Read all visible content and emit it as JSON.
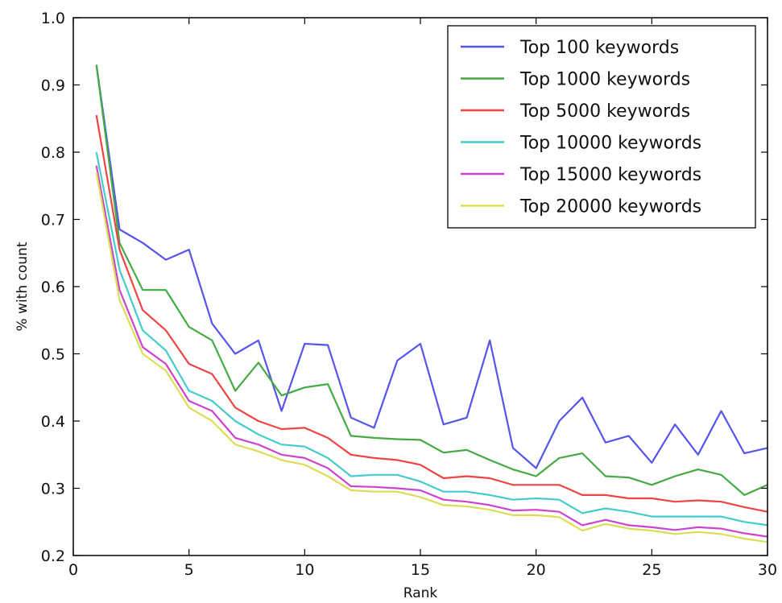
{
  "chart_data": {
    "type": "line",
    "title": "",
    "xlabel": "Rank",
    "ylabel": "% with count",
    "xlim": [
      0,
      30
    ],
    "ylim": [
      0.2,
      1.0
    ],
    "xticks": [
      "0",
      "5",
      "10",
      "15",
      "20",
      "25",
      "30"
    ],
    "yticks": [
      "0.2",
      "0.3",
      "0.4",
      "0.5",
      "0.6",
      "0.7",
      "0.8",
      "0.9",
      "1.0"
    ],
    "grid": false,
    "legend_position": "top-right",
    "x": [
      1,
      2,
      3,
      4,
      5,
      6,
      7,
      8,
      9,
      10,
      11,
      12,
      13,
      14,
      15,
      16,
      17,
      18,
      19,
      20,
      21,
      22,
      23,
      24,
      25,
      26,
      27,
      28,
      29,
      30
    ],
    "series": [
      {
        "name": "Top 100 keywords",
        "color": "#5555ee",
        "values": [
          0.93,
          0.685,
          0.665,
          0.64,
          0.655,
          0.545,
          0.5,
          0.52,
          0.415,
          0.515,
          0.513,
          0.405,
          0.39,
          0.49,
          0.515,
          0.395,
          0.405,
          0.52,
          0.36,
          0.33,
          0.4,
          0.435,
          0.368,
          0.378,
          0.338,
          0.395,
          0.35,
          0.415,
          0.352,
          0.36
        ]
      },
      {
        "name": "Top 1000 keywords",
        "color": "#44aa44",
        "values": [
          0.93,
          0.665,
          0.595,
          0.595,
          0.54,
          0.52,
          0.445,
          0.487,
          0.438,
          0.45,
          0.455,
          0.378,
          0.375,
          0.373,
          0.372,
          0.353,
          0.357,
          0.342,
          0.328,
          0.318,
          0.345,
          0.352,
          0.318,
          0.316,
          0.305,
          0.318,
          0.328,
          0.32,
          0.29,
          0.305
        ]
      },
      {
        "name": "Top 5000 keywords",
        "color": "#ee4444",
        "values": [
          0.855,
          0.655,
          0.565,
          0.535,
          0.485,
          0.47,
          0.42,
          0.4,
          0.388,
          0.39,
          0.375,
          0.35,
          0.345,
          0.342,
          0.335,
          0.315,
          0.318,
          0.315,
          0.305,
          0.305,
          0.305,
          0.29,
          0.29,
          0.285,
          0.285,
          0.28,
          0.282,
          0.28,
          0.272,
          0.265
        ]
      },
      {
        "name": "Top 10000 keywords",
        "color": "#44cccc",
        "values": [
          0.8,
          0.625,
          0.535,
          0.505,
          0.445,
          0.43,
          0.4,
          0.38,
          0.365,
          0.362,
          0.345,
          0.318,
          0.32,
          0.32,
          0.31,
          0.295,
          0.295,
          0.29,
          0.283,
          0.285,
          0.283,
          0.263,
          0.27,
          0.265,
          0.258,
          0.258,
          0.258,
          0.258,
          0.25,
          0.245
        ]
      },
      {
        "name": "Top 15000 keywords",
        "color": "#cc44cc",
        "values": [
          0.78,
          0.595,
          0.51,
          0.485,
          0.43,
          0.415,
          0.375,
          0.365,
          0.35,
          0.345,
          0.33,
          0.303,
          0.302,
          0.3,
          0.297,
          0.283,
          0.28,
          0.275,
          0.267,
          0.268,
          0.265,
          0.245,
          0.253,
          0.245,
          0.242,
          0.238,
          0.242,
          0.24,
          0.233,
          0.228
        ]
      },
      {
        "name": "Top 20000 keywords",
        "color": "#dddd55",
        "values": [
          0.77,
          0.58,
          0.5,
          0.475,
          0.42,
          0.4,
          0.365,
          0.355,
          0.342,
          0.335,
          0.318,
          0.297,
          0.295,
          0.295,
          0.287,
          0.275,
          0.273,
          0.268,
          0.26,
          0.26,
          0.257,
          0.237,
          0.247,
          0.24,
          0.237,
          0.232,
          0.235,
          0.232,
          0.225,
          0.22
        ]
      }
    ]
  }
}
